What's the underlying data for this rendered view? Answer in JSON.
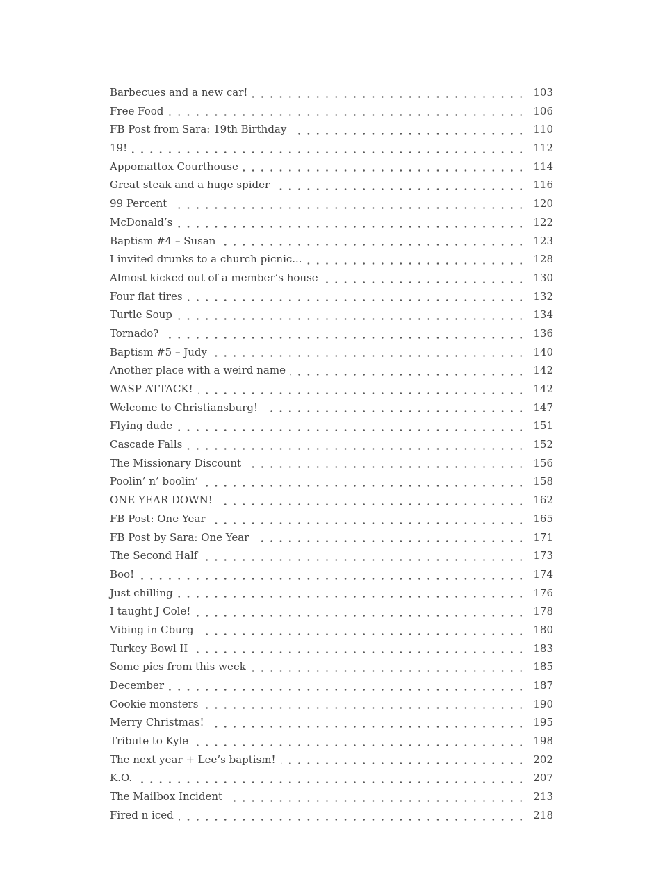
{
  "page": {
    "background": "#ffffff",
    "text_color": "#414141",
    "leader_dot_color": "#585858"
  },
  "toc": {
    "entries": [
      {
        "title": "Barbecues and a new car!",
        "page": "103"
      },
      {
        "title": "Free Food",
        "page": "106"
      },
      {
        "title": "FB Post from Sara: 19th Birthday",
        "page": "110"
      },
      {
        "title": "19!",
        "page": "112"
      },
      {
        "title": "Appomattox Courthouse",
        "page": "114"
      },
      {
        "title": "Great steak and a huge spider",
        "page": "116"
      },
      {
        "title": "99 Percent",
        "page": "120"
      },
      {
        "title": "McDonald’s",
        "page": "122"
      },
      {
        "title": "Baptism #4 – Susan",
        "page": "123"
      },
      {
        "title": "I invited drunks to a church picnic...",
        "page": "128"
      },
      {
        "title": "Almost kicked out of a member’s house",
        "page": "130"
      },
      {
        "title": "Four flat tires",
        "page": "132"
      },
      {
        "title": "Turtle Soup",
        "page": "134"
      },
      {
        "title": "Tornado?",
        "page": "136"
      },
      {
        "title": "Baptism #5 – Judy",
        "page": "140"
      },
      {
        "title": "Another place with a weird name",
        "page": "142"
      },
      {
        "title": "WASP ATTACK!",
        "page": "142"
      },
      {
        "title": "Welcome to Christiansburg!",
        "page": "147"
      },
      {
        "title": "Flying dude",
        "page": "151"
      },
      {
        "title": "Cascade Falls",
        "page": "152"
      },
      {
        "title": "The Missionary Discount",
        "page": "156"
      },
      {
        "title": "Poolin’ n’ boolin’",
        "page": "158"
      },
      {
        "title": "ONE YEAR DOWN!",
        "page": "162"
      },
      {
        "title": "FB Post: One Year",
        "page": "165"
      },
      {
        "title": "FB Post by Sara: One Year",
        "page": "171"
      },
      {
        "title": "The Second Half",
        "page": "173"
      },
      {
        "title": "Boo!",
        "page": "174"
      },
      {
        "title": "Just chilling",
        "page": "176"
      },
      {
        "title": "I taught J Cole!",
        "page": "178"
      },
      {
        "title": "Vibing in Cburg",
        "page": "180"
      },
      {
        "title": "Turkey Bowl II",
        "page": "183"
      },
      {
        "title": "Some pics from this week",
        "page": "185"
      },
      {
        "title": "December",
        "page": "187"
      },
      {
        "title": "Cookie monsters",
        "page": "190"
      },
      {
        "title": "Merry Christmas!",
        "page": "195"
      },
      {
        "title": "Tribute to Kyle",
        "page": "198"
      },
      {
        "title": "The next year + Lee’s baptism!",
        "page": "202"
      },
      {
        "title": "K.O.",
        "page": "207"
      },
      {
        "title": "The Mailbox Incident",
        "page": "213"
      },
      {
        "title": "Fired n iced",
        "page": "218"
      }
    ]
  }
}
